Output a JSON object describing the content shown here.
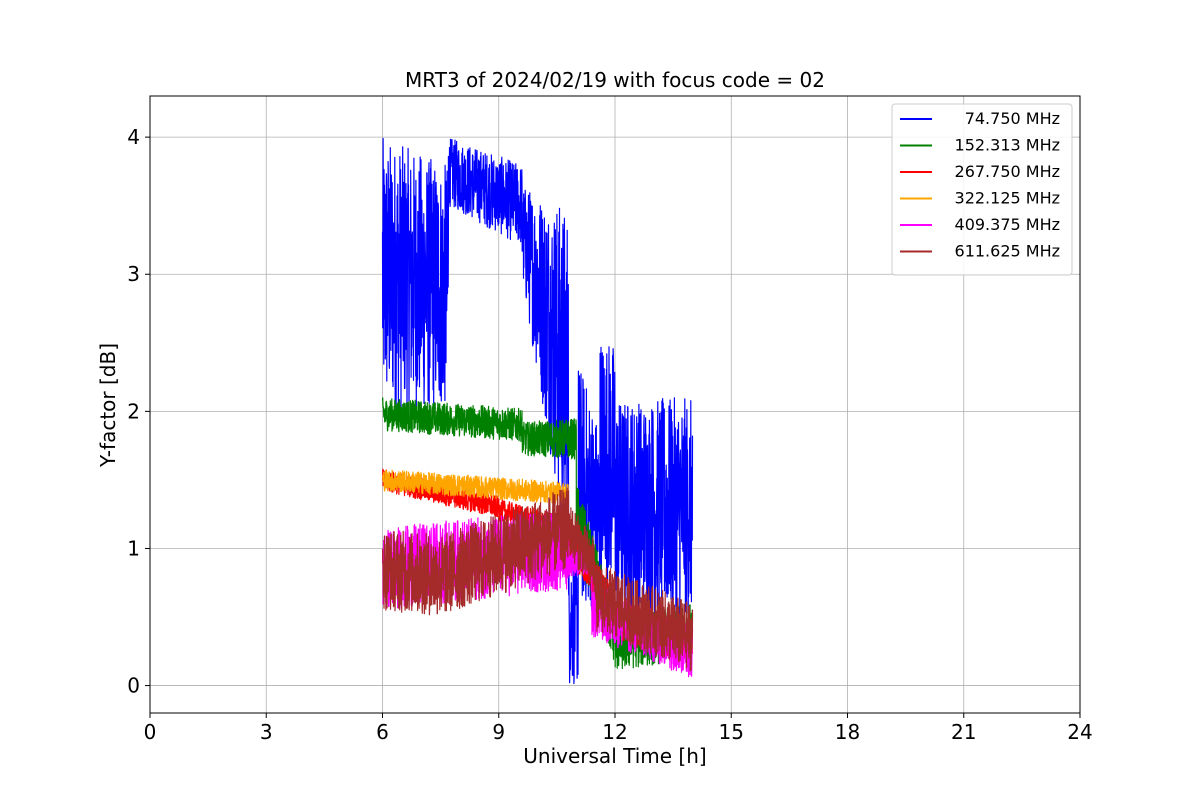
{
  "chart_data": {
    "type": "line",
    "title": "MRT3 of 2024/02/19 with focus code = 02",
    "xlabel": "Universal Time [h]",
    "ylabel": "Y-factor [dB]",
    "xlim": [
      0,
      24
    ],
    "ylim": [
      -0.2,
      4.3
    ],
    "x_ticks": [
      0,
      3,
      6,
      9,
      12,
      15,
      18,
      21,
      24
    ],
    "y_ticks": [
      0,
      1,
      2,
      3,
      4
    ],
    "grid": true,
    "legend_position": "top-right",
    "series": [
      {
        "name": "74.750 MHz",
        "color": "#0000ff",
        "segments": [
          {
            "x": [
              6.0,
              7.7
            ],
            "mid": [
              3.0,
              2.9
            ],
            "amp": [
              1.0,
              0.9
            ]
          },
          {
            "x": [
              7.7,
              9.6
            ],
            "mid": [
              3.75,
              3.5
            ],
            "amp": [
              0.25,
              0.3
            ]
          },
          {
            "x": [
              9.6,
              10.8
            ],
            "mid": [
              3.3,
              2.2
            ],
            "amp": [
              0.35,
              1.3
            ]
          },
          {
            "x": [
              10.8,
              11.05
            ],
            "mid": [
              0.5,
              0.5
            ],
            "amp": [
              0.5,
              0.5
            ]
          },
          {
            "x": [
              11.05,
              11.6
            ],
            "mid": [
              1.5,
              1.2
            ],
            "amp": [
              0.9,
              0.7
            ]
          },
          {
            "x": [
              11.6,
              12.0
            ],
            "mid": [
              1.7,
              1.6
            ],
            "amp": [
              0.9,
              0.9
            ]
          },
          {
            "x": [
              12.0,
              14.0
            ],
            "mid": [
              1.3,
              1.3
            ],
            "amp": [
              0.8,
              0.8
            ]
          }
        ]
      },
      {
        "name": "152.313 MHz",
        "color": "#008000",
        "segments": [
          {
            "x": [
              6.0,
              9.6
            ],
            "mid": [
              1.98,
              1.9
            ],
            "amp": [
              0.12,
              0.12
            ]
          },
          {
            "x": [
              9.6,
              11.0
            ],
            "mid": [
              1.8,
              1.8
            ],
            "amp": [
              0.12,
              0.15
            ]
          },
          {
            "x": [
              11.0,
              12.0
            ],
            "mid": [
              1.2,
              0.35
            ],
            "amp": [
              0.3,
              0.2
            ]
          },
          {
            "x": [
              12.0,
              14.0
            ],
            "mid": [
              0.3,
              0.4
            ],
            "amp": [
              0.2,
              0.2
            ]
          }
        ]
      },
      {
        "name": "267.750 MHz",
        "color": "#ff0000",
        "segments": [
          {
            "x": [
              6.0,
              9.0
            ],
            "mid": [
              1.5,
              1.3
            ],
            "amp": [
              0.08,
              0.08
            ]
          },
          {
            "x": [
              9.0,
              10.8
            ],
            "mid": [
              1.28,
              1.15
            ],
            "amp": [
              0.08,
              0.08
            ]
          },
          {
            "x": [
              10.8,
              12.0
            ],
            "mid": [
              1.05,
              0.55
            ],
            "amp": [
              0.12,
              0.15
            ]
          },
          {
            "x": [
              12.0,
              14.0
            ],
            "mid": [
              0.5,
              0.3
            ],
            "amp": [
              0.15,
              0.15
            ]
          }
        ]
      },
      {
        "name": "322.125 MHz",
        "color": "#ffa500",
        "segments": [
          {
            "x": [
              6.0,
              10.8
            ],
            "mid": [
              1.5,
              1.4
            ],
            "amp": [
              0.08,
              0.08
            ]
          }
        ]
      },
      {
        "name": "409.375 MHz",
        "color": "#ff00ff",
        "segments": [
          {
            "x": [
              6.0,
              10.8
            ],
            "mid": [
              0.85,
              1.0
            ],
            "amp": [
              0.3,
              0.3
            ]
          },
          {
            "x": [
              10.8,
              11.4
            ],
            "mid": [
              0.9,
              0.9
            ],
            "amp": [
              0.1,
              0.1
            ]
          },
          {
            "x": [
              11.4,
              14.0
            ],
            "mid": [
              0.55,
              0.25
            ],
            "amp": [
              0.2,
              0.2
            ]
          }
        ]
      },
      {
        "name": "611.625 MHz",
        "color": "#a52a2a",
        "segments": [
          {
            "x": [
              6.0,
              7.5
            ],
            "mid": [
              0.85,
              0.8
            ],
            "amp": [
              0.3,
              0.3
            ]
          },
          {
            "x": [
              7.5,
              10.8
            ],
            "mid": [
              0.8,
              1.15
            ],
            "amp": [
              0.3,
              0.3
            ]
          },
          {
            "x": [
              10.8,
              11.5
            ],
            "mid": [
              1.15,
              0.85
            ],
            "amp": [
              0.2,
              0.2
            ]
          },
          {
            "x": [
              11.5,
              14.0
            ],
            "mid": [
              0.65,
              0.35
            ],
            "amp": [
              0.25,
              0.25
            ]
          }
        ]
      }
    ]
  }
}
